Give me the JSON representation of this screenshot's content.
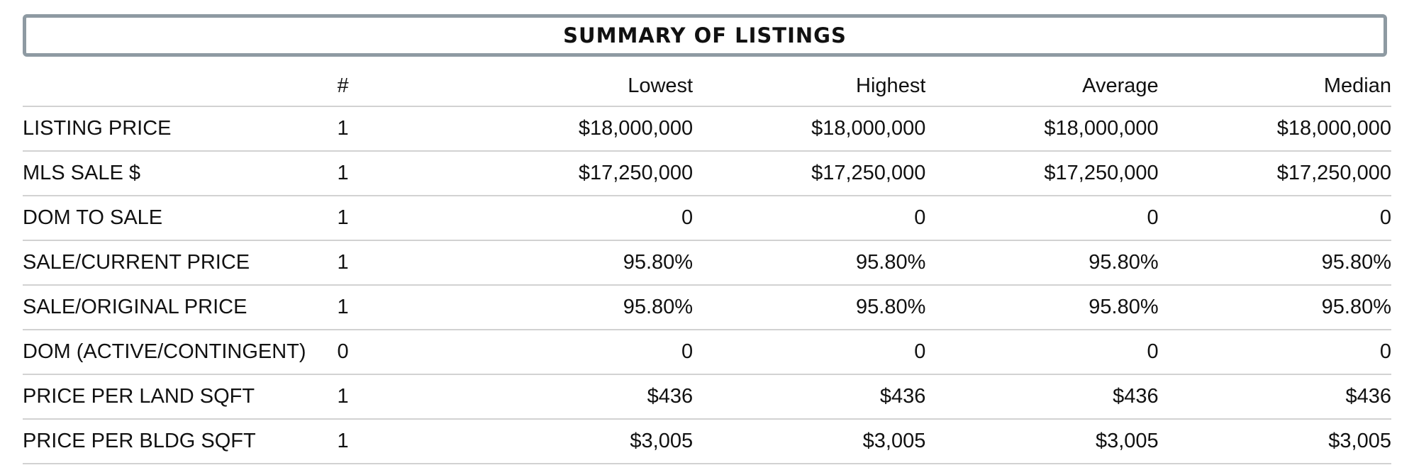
{
  "title": "SUMMARY OF LISTINGS",
  "headers": {
    "label": "",
    "count": "#",
    "lowest": "Lowest",
    "highest": "Highest",
    "average": "Average",
    "median": "Median"
  },
  "rows": [
    {
      "label": "LISTING PRICE",
      "count": "1",
      "lowest": "$18,000,000",
      "highest": "$18,000,000",
      "average": "$18,000,000",
      "median": "$18,000,000"
    },
    {
      "label": "MLS SALE $",
      "count": "1",
      "lowest": "$17,250,000",
      "highest": "$17,250,000",
      "average": "$17,250,000",
      "median": "$17,250,000"
    },
    {
      "label": "DOM TO SALE",
      "count": "1",
      "lowest": "0",
      "highest": "0",
      "average": "0",
      "median": "0"
    },
    {
      "label": "SALE/CURRENT PRICE",
      "count": "1",
      "lowest": "95.80%",
      "highest": "95.80%",
      "average": "95.80%",
      "median": "95.80%"
    },
    {
      "label": "SALE/ORIGINAL PRICE",
      "count": "1",
      "lowest": "95.80%",
      "highest": "95.80%",
      "average": "95.80%",
      "median": "95.80%"
    },
    {
      "label": "DOM (ACTIVE/CONTINGENT)",
      "count": "0",
      "lowest": "0",
      "highest": "0",
      "average": "0",
      "median": "0"
    },
    {
      "label": "PRICE PER LAND SQFT",
      "count": "1",
      "lowest": "$436",
      "highest": "$436",
      "average": "$436",
      "median": "$436"
    },
    {
      "label": "PRICE PER BLDG SQFT",
      "count": "1",
      "lowest": "$3,005",
      "highest": "$3,005",
      "average": "$3,005",
      "median": "$3,005"
    }
  ],
  "colors": {
    "title_border": "#8e9aa2",
    "row_divider": "#d2d2d2",
    "text": "#111111"
  }
}
